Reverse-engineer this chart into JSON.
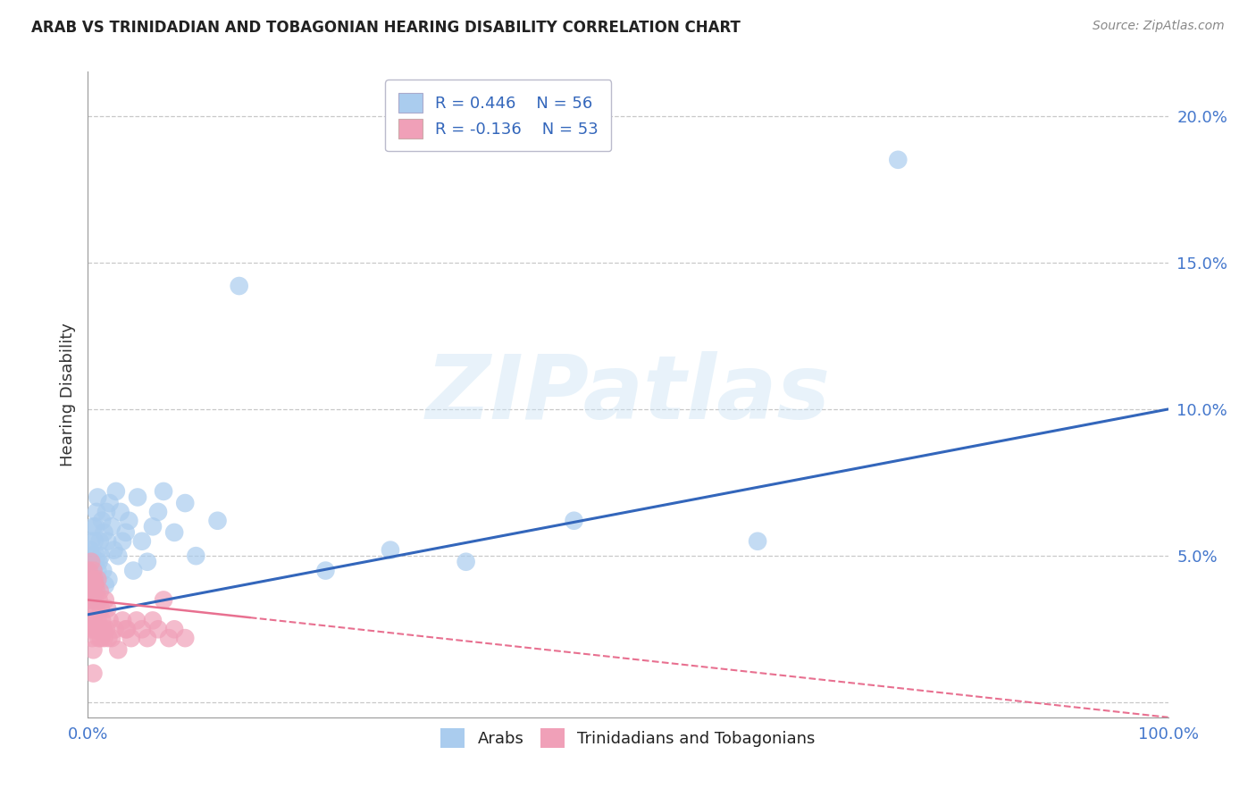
{
  "title": "ARAB VS TRINIDADIAN AND TOBAGONIAN HEARING DISABILITY CORRELATION CHART",
  "source": "Source: ZipAtlas.com",
  "ylabel": "Hearing Disability",
  "xlim": [
    0,
    1.0
  ],
  "ylim": [
    -0.005,
    0.215
  ],
  "arab_color": "#aaccee",
  "arab_edge_color": "#aaccee",
  "tnt_color": "#f0a0b8",
  "tnt_edge_color": "#f0a0b8",
  "blue_line_color": "#3366bb",
  "pink_line_color": "#e87090",
  "legend_arab_R": "R = 0.446",
  "legend_arab_N": "N = 56",
  "legend_tnt_R": "R = -0.136",
  "legend_tnt_N": "N = 53",
  "watermark": "ZIPatlas",
  "background_color": "#ffffff",
  "grid_color": "#bbbbbb",
  "arab_x": [
    0.001,
    0.001,
    0.002,
    0.002,
    0.003,
    0.003,
    0.003,
    0.004,
    0.004,
    0.005,
    0.005,
    0.006,
    0.006,
    0.007,
    0.007,
    0.008,
    0.008,
    0.009,
    0.009,
    0.01,
    0.011,
    0.012,
    0.013,
    0.014,
    0.015,
    0.016,
    0.017,
    0.018,
    0.019,
    0.02,
    0.022,
    0.024,
    0.026,
    0.028,
    0.03,
    0.032,
    0.035,
    0.038,
    0.042,
    0.046,
    0.05,
    0.055,
    0.06,
    0.065,
    0.07,
    0.08,
    0.09,
    0.1,
    0.12,
    0.14,
    0.22,
    0.28,
    0.35,
    0.45,
    0.62,
    0.75
  ],
  "arab_y": [
    0.038,
    0.045,
    0.042,
    0.052,
    0.04,
    0.055,
    0.047,
    0.05,
    0.035,
    0.06,
    0.045,
    0.038,
    0.055,
    0.042,
    0.06,
    0.05,
    0.065,
    0.045,
    0.07,
    0.048,
    0.055,
    0.05,
    0.062,
    0.045,
    0.058,
    0.04,
    0.065,
    0.055,
    0.042,
    0.068,
    0.06,
    0.052,
    0.072,
    0.05,
    0.065,
    0.055,
    0.058,
    0.062,
    0.045,
    0.07,
    0.055,
    0.048,
    0.06,
    0.065,
    0.072,
    0.058,
    0.068,
    0.05,
    0.062,
    0.142,
    0.045,
    0.052,
    0.048,
    0.062,
    0.055,
    0.185
  ],
  "tnt_x": [
    0.001,
    0.001,
    0.002,
    0.002,
    0.003,
    0.003,
    0.003,
    0.003,
    0.004,
    0.004,
    0.004,
    0.005,
    0.005,
    0.005,
    0.006,
    0.006,
    0.006,
    0.007,
    0.007,
    0.008,
    0.008,
    0.009,
    0.009,
    0.01,
    0.01,
    0.011,
    0.012,
    0.013,
    0.014,
    0.015,
    0.016,
    0.017,
    0.018,
    0.019,
    0.02,
    0.022,
    0.025,
    0.028,
    0.032,
    0.036,
    0.04,
    0.045,
    0.05,
    0.055,
    0.06,
    0.065,
    0.07,
    0.075,
    0.08,
    0.09,
    0.005,
    0.012,
    0.035
  ],
  "tnt_y": [
    0.045,
    0.035,
    0.04,
    0.025,
    0.038,
    0.028,
    0.048,
    0.032,
    0.042,
    0.022,
    0.038,
    0.045,
    0.028,
    0.018,
    0.042,
    0.035,
    0.025,
    0.04,
    0.032,
    0.038,
    0.025,
    0.042,
    0.028,
    0.035,
    0.022,
    0.038,
    0.032,
    0.028,
    0.025,
    0.022,
    0.035,
    0.025,
    0.032,
    0.022,
    0.028,
    0.022,
    0.025,
    0.018,
    0.028,
    0.025,
    0.022,
    0.028,
    0.025,
    0.022,
    0.028,
    0.025,
    0.035,
    0.022,
    0.025,
    0.022,
    0.01,
    0.022,
    0.025
  ],
  "blue_line_x0": 0.0,
  "blue_line_x1": 1.0,
  "blue_line_y0": 0.03,
  "blue_line_y1": 0.1,
  "pink_line_x0": 0.0,
  "pink_line_x1": 1.0,
  "pink_line_y0": 0.035,
  "pink_line_y1": -0.005
}
